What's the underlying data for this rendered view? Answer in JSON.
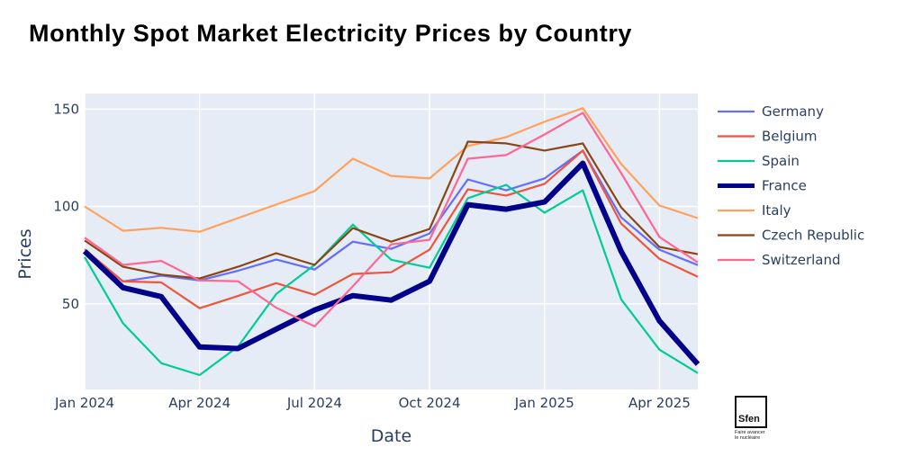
{
  "chart_data": {
    "type": "line",
    "title": "Monthly Spot Market Electricity Prices by Country",
    "xlabel": "Date",
    "ylabel": "Prices",
    "x": [
      "2024-01",
      "2024-02",
      "2024-03",
      "2024-04",
      "2024-05",
      "2024-06",
      "2024-07",
      "2024-08",
      "2024-09",
      "2024-10",
      "2024-11",
      "2024-12",
      "2025-01",
      "2025-02",
      "2025-03",
      "2025-04",
      "2025-05"
    ],
    "x_tick_labels": [
      "Jan 2024",
      "Apr 2024",
      "Jul 2024",
      "Oct 2024",
      "Jan 2025",
      "Apr 2025"
    ],
    "x_tick_index": [
      0,
      3,
      6,
      9,
      12,
      15
    ],
    "y_ticks": [
      50,
      100,
      150
    ],
    "ylim": [
      6,
      158
    ],
    "grid": true,
    "legend_position": "right",
    "series": [
      {
        "name": "Germany",
        "color": "#636efa",
        "emphasis": false,
        "values": [
          77,
          61.5,
          64.5,
          62,
          67,
          72.7,
          67.6,
          81.9,
          78.2,
          86.1,
          113.9,
          108.3,
          114.4,
          128.7,
          94.4,
          77.8,
          69.9
        ]
      },
      {
        "name": "Belgium",
        "color": "#ef553b",
        "emphasis": false,
        "values": [
          78,
          61.5,
          61,
          47.7,
          54,
          60.6,
          54.6,
          65.3,
          66.2,
          77.8,
          108.8,
          105.6,
          111.6,
          128.7,
          91.2,
          73.1,
          63.9
        ]
      },
      {
        "name": "Spain",
        "color": "#00cc96",
        "emphasis": false,
        "values": [
          74,
          40,
          19.5,
          13.4,
          28,
          55,
          70,
          90.7,
          72.6,
          68.5,
          104.2,
          111.1,
          96.8,
          108.3,
          52.3,
          26.4,
          14.4
        ]
      },
      {
        "name": "France",
        "color": "#00008b",
        "emphasis": true,
        "values": [
          77,
          58.3,
          53.7,
          27.8,
          27,
          37,
          46.8,
          54.2,
          51.9,
          61.6,
          100.9,
          98.6,
          102.3,
          122.2,
          76.9,
          41.2,
          19
        ]
      },
      {
        "name": "Italy",
        "color": "#ffa15a",
        "emphasis": false,
        "values": [
          100,
          87.5,
          89,
          87,
          94,
          101,
          107.9,
          124.5,
          115.7,
          114.4,
          131,
          135.6,
          143.5,
          150.5,
          121.8,
          100.5,
          94
        ]
      },
      {
        "name": "Czech Republic",
        "color": "#8b4513",
        "emphasis": false,
        "values": [
          82.5,
          69,
          65,
          63,
          69,
          76,
          70,
          88.9,
          81.9,
          88.4,
          133.3,
          132.4,
          128.7,
          132.4,
          99.5,
          79.2,
          75.5
        ]
      },
      {
        "name": "Switzerland",
        "color": "#ff6692",
        "emphasis": false,
        "values": [
          84,
          70,
          72,
          62,
          61.6,
          48,
          38.4,
          59,
          80.5,
          82.9,
          124.5,
          126.4,
          137,
          148.1,
          117.1,
          84.3,
          71.3
        ]
      }
    ]
  },
  "logo": {
    "name": "Sfen",
    "tagline": "Faire avancer\nle nucléaire"
  }
}
